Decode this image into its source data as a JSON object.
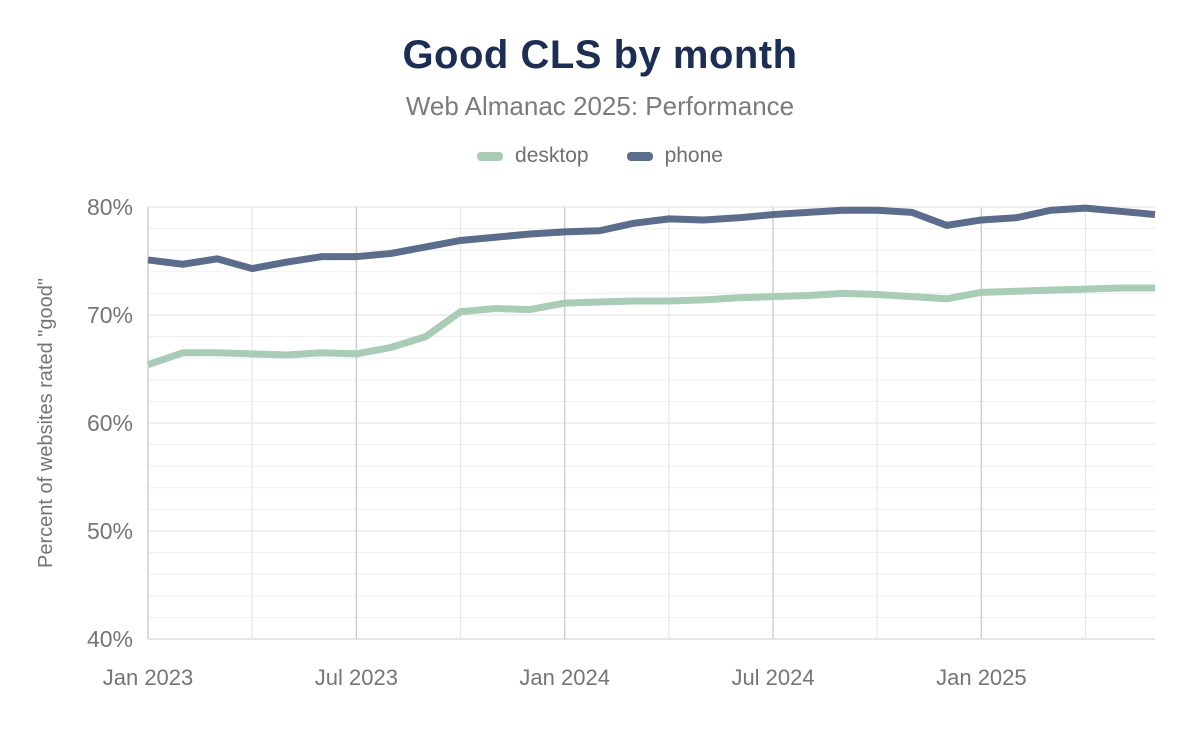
{
  "header": {
    "title": "Good CLS by month",
    "subtitle": "Web Almanac 2025: Performance"
  },
  "legend": {
    "items": [
      {
        "label": "desktop",
        "color": "#a8ccb5"
      },
      {
        "label": "phone",
        "color": "#5c6c8d"
      }
    ]
  },
  "chart_data": {
    "type": "line",
    "title": "Good CLS by month",
    "subtitle": "Web Almanac 2025: Performance",
    "xlabel": "",
    "ylabel": "Percent of websites rated \"good\"",
    "y_axis": {
      "min": 40,
      "max": 80,
      "major_step": 10,
      "minor_step": 2,
      "tick_suffix": "%"
    },
    "x_tick_labels": [
      "Jan 2023",
      "Jul 2023",
      "Jan 2024",
      "Jul 2024",
      "Jan 2025"
    ],
    "grid": {
      "x_line_every_months": 3,
      "x_label_every_months": 6,
      "horizontal_minor": true,
      "legend_position": "top"
    },
    "months": [
      "Jan 2023",
      "Feb 2023",
      "Mar 2023",
      "Apr 2023",
      "May 2023",
      "Jun 2023",
      "Jul 2023",
      "Aug 2023",
      "Sep 2023",
      "Oct 2023",
      "Nov 2023",
      "Dec 2023",
      "Jan 2024",
      "Feb 2024",
      "Mar 2024",
      "Apr 2024",
      "May 2024",
      "Jun 2024",
      "Jul 2024",
      "Aug 2024",
      "Sep 2024",
      "Oct 2024",
      "Nov 2024",
      "Dec 2024",
      "Jan 2025",
      "Feb 2025",
      "Mar 2025",
      "Apr 2025",
      "May 2025",
      "Jun 2025"
    ],
    "series": [
      {
        "name": "desktop",
        "color": "#a8ccb5",
        "values": [
          65.4,
          66.5,
          66.5,
          66.4,
          66.3,
          66.5,
          66.4,
          67.0,
          68.0,
          70.3,
          70.6,
          70.5,
          71.1,
          71.2,
          71.3,
          71.3,
          71.4,
          71.6,
          71.7,
          71.8,
          72.0,
          71.9,
          71.7,
          71.5,
          72.1,
          72.2,
          72.3,
          72.4,
          72.5,
          72.5
        ]
      },
      {
        "name": "phone",
        "color": "#5c6c8d",
        "values": [
          75.1,
          74.7,
          75.2,
          74.3,
          74.9,
          75.4,
          75.4,
          75.7,
          76.3,
          76.9,
          77.2,
          77.5,
          77.7,
          77.8,
          78.5,
          78.9,
          78.8,
          79.0,
          79.3,
          79.5,
          79.7,
          79.7,
          79.5,
          78.3,
          78.8,
          79.0,
          79.7,
          79.9,
          79.6,
          79.3
        ]
      }
    ],
    "colors": {
      "title": "#1c2e54",
      "subtitle": "#7b7b7b",
      "tick_labels": "#757575",
      "grid_minor_h": "#f1f1f1",
      "grid_major_h": "#e7e7e7",
      "grid_baseline": "#dedede",
      "grid_major_v": "#cdcdcd",
      "grid_minor_v": "#e7e7e7"
    }
  }
}
